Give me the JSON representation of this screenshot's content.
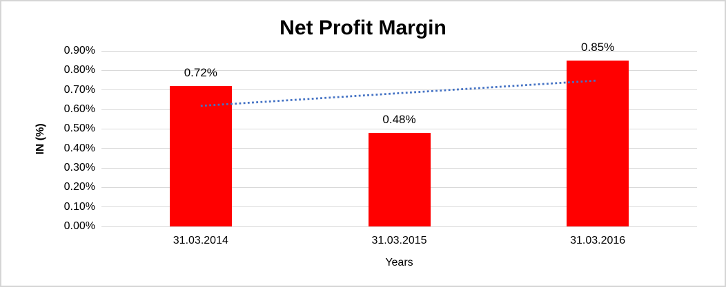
{
  "window": {
    "background_color": "#FFFFFF",
    "border_color": "#D5D5D5"
  },
  "chart_data": {
    "type": "bar",
    "title": "Net Profit Margin",
    "categories": [
      "31.03.2014",
      "31.03.2015",
      "31.03.2016"
    ],
    "values": [
      0.72,
      0.48,
      0.85
    ],
    "data_labels": [
      "0.72%",
      "0.48%",
      "0.85%"
    ],
    "xlabel": "Years",
    "ylabel": "IN (%)",
    "ylim": [
      0,
      0.9
    ],
    "ytick_step": 0.1,
    "ytick_labels": [
      "0.00%",
      "0.10%",
      "0.20%",
      "0.30%",
      "0.40%",
      "0.50%",
      "0.60%",
      "0.70%",
      "0.80%",
      "0.90%"
    ],
    "grid": true,
    "legend_position": "none",
    "bar_color": "#FF0000",
    "gridline_color": "#D9D9D9",
    "text_color": "#000000",
    "trendline": {
      "type": "linear",
      "style": "dotted",
      "color": "#4472C4",
      "fitted_values": [
        0.6183,
        0.6833,
        0.7483
      ]
    }
  }
}
